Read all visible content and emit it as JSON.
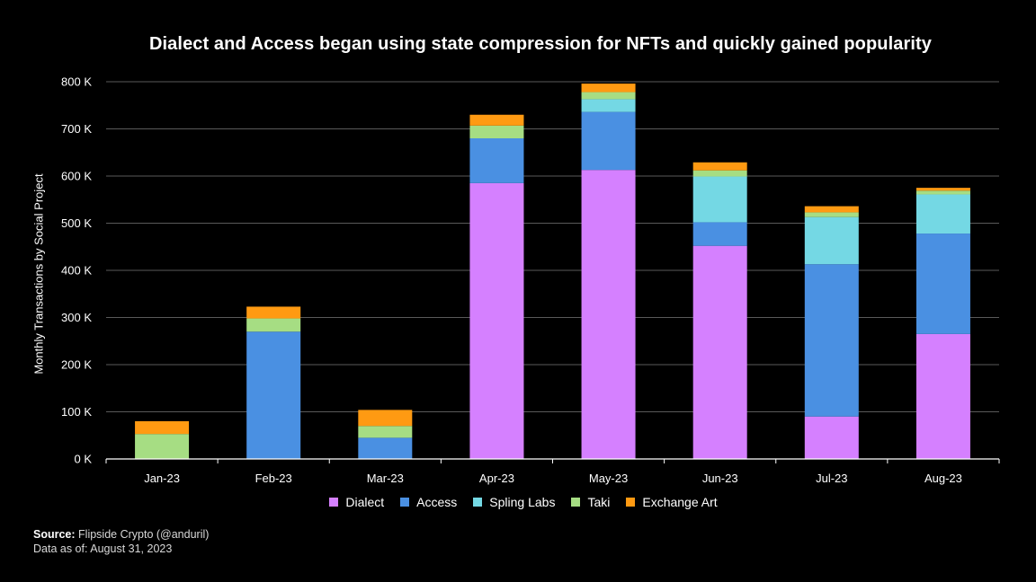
{
  "chart_data": {
    "type": "bar",
    "stacked": true,
    "title": "Dialect and Access began using state compression for NFTs and quickly gained popularity",
    "xlabel": "",
    "ylabel": "Monthly Transactions by Social Project",
    "ylim": [
      0,
      800000
    ],
    "yticks": [
      0,
      100000,
      200000,
      300000,
      400000,
      500000,
      600000,
      700000,
      800000
    ],
    "ytick_labels": [
      "0 K",
      "100 K",
      "200 K",
      "300 K",
      "400 K",
      "500 K",
      "600 K",
      "700 K",
      "800 K"
    ],
    "grid": "horizontal",
    "legend_position": "bottom",
    "categories": [
      "Jan-23",
      "Feb-23",
      "Mar-23",
      "Apr-23",
      "May-23",
      "Jun-23",
      "Jul-23",
      "Aug-23"
    ],
    "series": [
      {
        "name": "Dialect",
        "color": "#D580FF",
        "values": [
          0,
          0,
          0,
          585000,
          613000,
          452000,
          90000,
          265000
        ]
      },
      {
        "name": "Access",
        "color": "#4A90E2",
        "values": [
          0,
          270000,
          45000,
          95000,
          123000,
          50000,
          323000,
          213000
        ]
      },
      {
        "name": "Spling Labs",
        "color": "#74D8E4",
        "values": [
          0,
          0,
          0,
          0,
          27000,
          97000,
          100000,
          83000
        ]
      },
      {
        "name": "Taki",
        "color": "#A6DD83",
        "values": [
          53000,
          28000,
          25000,
          27000,
          15000,
          13000,
          10000,
          8000
        ]
      },
      {
        "name": "Exchange Art",
        "color": "#FF9A12",
        "values": [
          27000,
          25000,
          34000,
          23000,
          18000,
          17000,
          13000,
          6000
        ]
      }
    ]
  },
  "footnote": {
    "source_label": "Source:",
    "source_text": "Flipside Crypto (@anduril)",
    "date_label": "Data as of:",
    "date_text": "August 31, 2023"
  }
}
